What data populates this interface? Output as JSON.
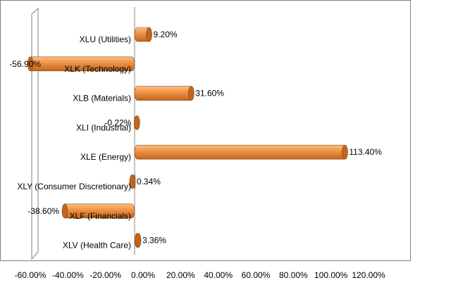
{
  "chart_data": {
    "type": "bar",
    "orientation": "horizontal",
    "style": "3d-cylinder",
    "categories": [
      "XLU (Utilities)",
      "XLK (Technology)",
      "XLB (Materials)",
      "XLI (Industrial)",
      "XLE (Energy)",
      "XLY (Consumer Discretionary)",
      "XLF (Financials)",
      "XLV (Health Care)"
    ],
    "values": [
      9.2,
      -56.9,
      31.6,
      -0.22,
      113.4,
      0.34,
      -38.6,
      3.36
    ],
    "data_labels": [
      "9.20%",
      "-56.90%",
      "31.60%",
      "-0.22%",
      "113.40%",
      "0.34%",
      "-38.60%",
      "3.36%"
    ],
    "x_ticks": [
      -60,
      -40,
      -20,
      0,
      20,
      40,
      60,
      80,
      100,
      120
    ],
    "x_tick_labels": [
      "-60.00%",
      "-40.00%",
      "-20.00%",
      "0.00%",
      "20.00%",
      "40.00%",
      "60.00%",
      "80.00%",
      "100.00%",
      "120.00%"
    ],
    "xlim": [
      -60,
      120
    ],
    "title": "",
    "xlabel": "",
    "ylabel": "",
    "grid": false,
    "legend": "none",
    "colors": {
      "bar_fill": "#F39A4C",
      "bar_light": "#F9C089",
      "bar_dark": "#C0651E",
      "bar_edge": "#8C4A12",
      "axis": "#888888",
      "plot_border": "#808080"
    }
  }
}
